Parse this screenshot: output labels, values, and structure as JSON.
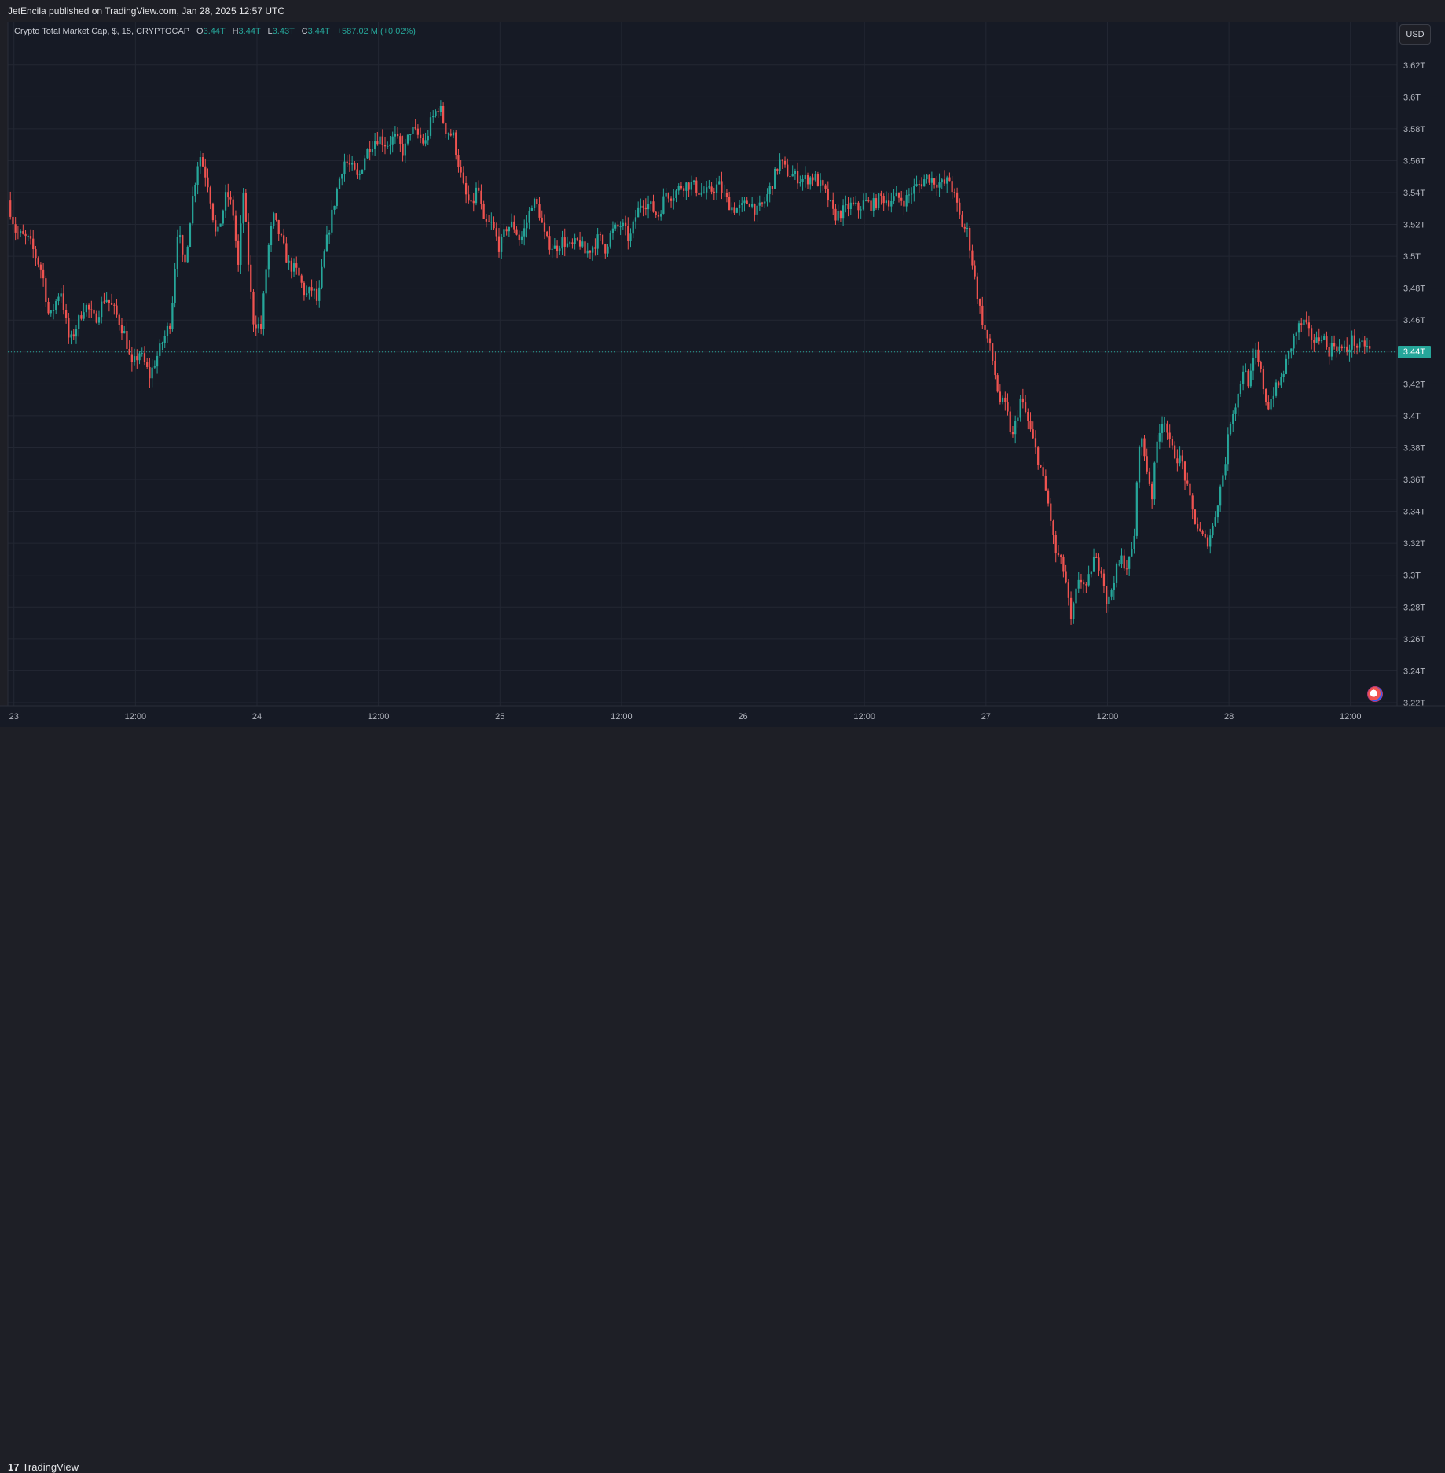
{
  "header": {
    "publish_text": "JetEncila published on TradingView.com, Jan 28, 2025 12:57 UTC"
  },
  "legend": {
    "symbol": "Crypto Total Market Cap, $, 15, CRYPTOCAP",
    "o_label": "O",
    "o_value": "3.44T",
    "h_label": "H",
    "h_value": "3.44T",
    "l_label": "L",
    "l_value": "3.43T",
    "c_label": "C",
    "c_value": "3.44T",
    "change": "+587.02 M (+0.02%)"
  },
  "controls": {
    "currency_button": "USD"
  },
  "price_tag": "3.44T",
  "footer": {
    "logo_glyph": "17",
    "logo_text": "TradingView"
  },
  "colors": {
    "background": "#161a25",
    "grid": "#232733",
    "up": "#26a69a",
    "down": "#ef5350",
    "axis_text": "#b2b5be"
  },
  "chart_data": {
    "type": "candlestick",
    "title": "Crypto Total Market Cap, $, 15, CRYPTOCAP",
    "ylabel": "",
    "xlabel": "",
    "ylim": [
      3.218,
      3.647
    ],
    "y_ticks": [
      "3.62T",
      "3.6T",
      "3.58T",
      "3.56T",
      "3.54T",
      "3.52T",
      "3.5T",
      "3.48T",
      "3.46T",
      "3.44T",
      "3.42T",
      "3.4T",
      "3.38T",
      "3.36T",
      "3.34T",
      "3.32T",
      "3.3T",
      "3.28T",
      "3.26T",
      "3.24T",
      "3.22T"
    ],
    "y_tick_values": [
      3.62,
      3.6,
      3.58,
      3.56,
      3.54,
      3.52,
      3.5,
      3.48,
      3.46,
      3.44,
      3.42,
      3.4,
      3.38,
      3.36,
      3.34,
      3.32,
      3.3,
      3.28,
      3.26,
      3.24,
      3.22
    ],
    "x_ticks": [
      {
        "label": "23",
        "t": 0
      },
      {
        "label": "12:00",
        "t": 12
      },
      {
        "label": "24",
        "t": 24
      },
      {
        "label": "12:00",
        "t": 36
      },
      {
        "label": "25",
        "t": 48
      },
      {
        "label": "12:00",
        "t": 60
      },
      {
        "label": "26",
        "t": 72
      },
      {
        "label": "12:00",
        "t": 84
      },
      {
        "label": "27",
        "t": 96
      },
      {
        "label": "12:00",
        "t": 108
      },
      {
        "label": "28",
        "t": 120
      },
      {
        "label": "12:00",
        "t": 132
      }
    ],
    "x_range_hours": [
      -0.6,
      136.6
    ],
    "last_price": 3.44,
    "series": [
      {
        "name": "Crypto Total Market Cap",
        "anchors": [
          [
            -0.6,
            3.535
          ],
          [
            0.2,
            3.515
          ],
          [
            1.5,
            3.51
          ],
          [
            2.8,
            3.49
          ],
          [
            3.5,
            3.46
          ],
          [
            4.6,
            3.48
          ],
          [
            5.5,
            3.445
          ],
          [
            7,
            3.47
          ],
          [
            8,
            3.46
          ],
          [
            9,
            3.475
          ],
          [
            10,
            3.465
          ],
          [
            11,
            3.45
          ],
          [
            11.6,
            3.43
          ],
          [
            12.4,
            3.44
          ],
          [
            13.4,
            3.425
          ],
          [
            14.3,
            3.44
          ],
          [
            15.5,
            3.46
          ],
          [
            16.2,
            3.52
          ],
          [
            16.8,
            3.49
          ],
          [
            17.6,
            3.535
          ],
          [
            18.3,
            3.565
          ],
          [
            19.2,
            3.545
          ],
          [
            20,
            3.51
          ],
          [
            21,
            3.54
          ],
          [
            21.6,
            3.53
          ],
          [
            22.2,
            3.49
          ],
          [
            22.6,
            3.545
          ],
          [
            23.1,
            3.5
          ],
          [
            23.6,
            3.46
          ],
          [
            24.4,
            3.455
          ],
          [
            25,
            3.5
          ],
          [
            25.6,
            3.525
          ],
          [
            26.4,
            3.51
          ],
          [
            27.1,
            3.495
          ],
          [
            28,
            3.49
          ],
          [
            28.8,
            3.475
          ],
          [
            29.5,
            3.48
          ],
          [
            30,
            3.47
          ],
          [
            30.6,
            3.5
          ],
          [
            31.2,
            3.52
          ],
          [
            32,
            3.545
          ],
          [
            32.6,
            3.56
          ],
          [
            33.4,
            3.555
          ],
          [
            34,
            3.548
          ],
          [
            34.6,
            3.562
          ],
          [
            35.2,
            3.57
          ],
          [
            36,
            3.575
          ],
          [
            36.8,
            3.57
          ],
          [
            37.6,
            3.575
          ],
          [
            38.5,
            3.565
          ],
          [
            39.2,
            3.58
          ],
          [
            40,
            3.575
          ],
          [
            40.6,
            3.57
          ],
          [
            41.2,
            3.585
          ],
          [
            42,
            3.595
          ],
          [
            42.6,
            3.58
          ],
          [
            43.4,
            3.575
          ],
          [
            44,
            3.555
          ],
          [
            44.5,
            3.54
          ],
          [
            45.2,
            3.53
          ],
          [
            45.8,
            3.545
          ],
          [
            46.4,
            3.52
          ],
          [
            47.2,
            3.52
          ],
          [
            48,
            3.505
          ],
          [
            48.6,
            3.518
          ],
          [
            49.3,
            3.52
          ],
          [
            50,
            3.51
          ],
          [
            50.6,
            3.52
          ],
          [
            51.2,
            3.535
          ],
          [
            51.8,
            3.53
          ],
          [
            52.5,
            3.51
          ],
          [
            53.4,
            3.505
          ],
          [
            54.2,
            3.51
          ],
          [
            55,
            3.505
          ],
          [
            55.8,
            3.51
          ],
          [
            56.4,
            3.502
          ],
          [
            57,
            3.505
          ],
          [
            57.8,
            3.512
          ],
          [
            58.4,
            3.505
          ],
          [
            59,
            3.515
          ],
          [
            60,
            3.52
          ],
          [
            60.8,
            3.51
          ],
          [
            61.4,
            3.525
          ],
          [
            62,
            3.535
          ],
          [
            62.8,
            3.532
          ],
          [
            63.6,
            3.525
          ],
          [
            64.4,
            3.54
          ],
          [
            65,
            3.538
          ],
          [
            66,
            3.545
          ],
          [
            67,
            3.545
          ],
          [
            67.8,
            3.54
          ],
          [
            68.6,
            3.54
          ],
          [
            69.6,
            3.545
          ],
          [
            70.4,
            3.535
          ],
          [
            71,
            3.53
          ],
          [
            71.8,
            3.53
          ],
          [
            72.6,
            3.535
          ],
          [
            73.4,
            3.528
          ],
          [
            74.2,
            3.535
          ],
          [
            75,
            3.548
          ],
          [
            75.6,
            3.56
          ],
          [
            76.3,
            3.553
          ],
          [
            77.2,
            3.55
          ],
          [
            78,
            3.548
          ],
          [
            79,
            3.55
          ],
          [
            79.6,
            3.545
          ],
          [
            80.3,
            3.538
          ],
          [
            81,
            3.525
          ],
          [
            81.8,
            3.528
          ],
          [
            82.6,
            3.532
          ],
          [
            83.4,
            3.53
          ],
          [
            84,
            3.534
          ],
          [
            84.8,
            3.532
          ],
          [
            85.6,
            3.537
          ],
          [
            86.4,
            3.535
          ],
          [
            87.2,
            3.537
          ],
          [
            88,
            3.535
          ],
          [
            88.8,
            3.542
          ],
          [
            89.4,
            3.545
          ],
          [
            90.2,
            3.55
          ],
          [
            91,
            3.547
          ],
          [
            91.8,
            3.545
          ],
          [
            92.4,
            3.548
          ],
          [
            93,
            3.535
          ],
          [
            93.6,
            3.52
          ],
          [
            94.2,
            3.515
          ],
          [
            94.8,
            3.49
          ],
          [
            95.3,
            3.47
          ],
          [
            95.8,
            3.455
          ],
          [
            96.3,
            3.445
          ],
          [
            96.8,
            3.43
          ],
          [
            97.3,
            3.41
          ],
          [
            98,
            3.405
          ],
          [
            98.6,
            3.385
          ],
          [
            99.4,
            3.41
          ],
          [
            100,
            3.4
          ],
          [
            100.6,
            3.385
          ],
          [
            101.3,
            3.37
          ],
          [
            101.8,
            3.355
          ],
          [
            102.3,
            3.34
          ],
          [
            102.8,
            3.315
          ],
          [
            103.3,
            3.31
          ],
          [
            103.8,
            3.3
          ],
          [
            104.4,
            3.27
          ],
          [
            105.2,
            3.3
          ],
          [
            105.9,
            3.29
          ],
          [
            106.6,
            3.31
          ],
          [
            107.4,
            3.305
          ],
          [
            108,
            3.28
          ],
          [
            108.7,
            3.3
          ],
          [
            109.4,
            3.31
          ],
          [
            110,
            3.305
          ],
          [
            110.6,
            3.32
          ],
          [
            111.2,
            3.39
          ],
          [
            111.8,
            3.37
          ],
          [
            112.4,
            3.35
          ],
          [
            113,
            3.39
          ],
          [
            113.6,
            3.4
          ],
          [
            114.2,
            3.38
          ],
          [
            114.8,
            3.375
          ],
          [
            115.4,
            3.37
          ],
          [
            116,
            3.35
          ],
          [
            116.6,
            3.335
          ],
          [
            117.2,
            3.325
          ],
          [
            117.8,
            3.32
          ],
          [
            118.4,
            3.33
          ],
          [
            119,
            3.35
          ],
          [
            119.6,
            3.37
          ],
          [
            120.2,
            3.4
          ],
          [
            120.8,
            3.41
          ],
          [
            121.4,
            3.43
          ],
          [
            122,
            3.42
          ],
          [
            122.6,
            3.44
          ],
          [
            123.2,
            3.425
          ],
          [
            123.8,
            3.405
          ],
          [
            124.4,
            3.415
          ],
          [
            125,
            3.42
          ],
          [
            125.6,
            3.432
          ],
          [
            126.2,
            3.445
          ],
          [
            126.8,
            3.455
          ],
          [
            127.4,
            3.458
          ],
          [
            128,
            3.45
          ],
          [
            128.6,
            3.446
          ],
          [
            129.2,
            3.452
          ],
          [
            129.8,
            3.44
          ],
          [
            130.4,
            3.445
          ],
          [
            131,
            3.442
          ],
          [
            131.6,
            3.44
          ],
          [
            132.2,
            3.448
          ],
          [
            132.8,
            3.442
          ],
          [
            133.4,
            3.445
          ],
          [
            134,
            3.44
          ]
        ]
      }
    ]
  }
}
